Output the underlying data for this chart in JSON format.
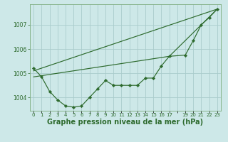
{
  "background_color": "#cde8e8",
  "grid_color": "#b8d8d8",
  "line_color": "#2d6a2d",
  "marker_color": "#2d6a2d",
  "xlabel": "Graphe pression niveau de la mer (hPa)",
  "xlabel_fontsize": 7,
  "xlim": [
    -0.5,
    23.5
  ],
  "ylim": [
    1003.45,
    1007.85
  ],
  "yticks": [
    1004,
    1005,
    1006,
    1007
  ],
  "xtick_labels": [
    "0",
    "1",
    "2",
    "3",
    "4",
    "5",
    "6",
    "7",
    "8",
    "9",
    "10",
    "11",
    "12",
    "13",
    "14",
    "15",
    "16",
    "17",
    "",
    "19",
    "20",
    "21",
    "22",
    "23"
  ],
  "series1_x": [
    0,
    1,
    2,
    3,
    4,
    5,
    6,
    7,
    8,
    9,
    10,
    11,
    12,
    13,
    14,
    15,
    16,
    17,
    19,
    20,
    21,
    22,
    23
  ],
  "series1_y": [
    1005.2,
    1004.85,
    1004.25,
    1003.9,
    1003.65,
    1003.6,
    1003.65,
    1004.0,
    1004.35,
    1004.7,
    1004.5,
    1004.5,
    1004.5,
    1004.5,
    1004.8,
    1004.8,
    1005.3,
    1005.7,
    1005.75,
    1006.35,
    1007.0,
    1007.3,
    1007.65
  ],
  "trend1_x": [
    0,
    23
  ],
  "trend1_y": [
    1005.1,
    1007.65
  ],
  "trend2_x": [
    0,
    17,
    23
  ],
  "trend2_y": [
    1004.85,
    1005.7,
    1007.65
  ]
}
